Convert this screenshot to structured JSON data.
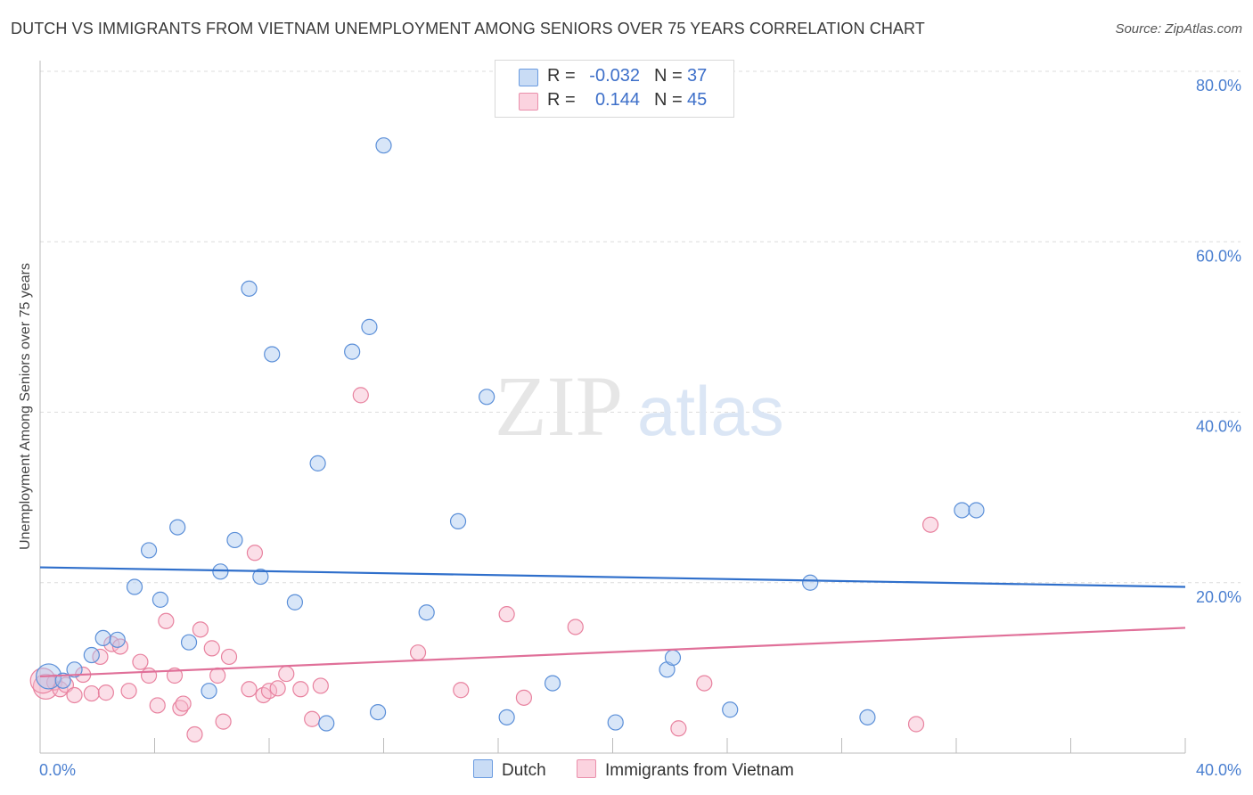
{
  "title": "DUTCH VS IMMIGRANTS FROM VIETNAM UNEMPLOYMENT AMONG SENIORS OVER 75 YEARS CORRELATION CHART",
  "source": "Source: ZipAtlas.com",
  "watermark": {
    "zip": "ZIP",
    "atlas": "atlas"
  },
  "legend": {
    "r_label": "R =",
    "n_label": "N =",
    "series": [
      {
        "name": "Dutch",
        "r": "-0.032",
        "n": "37"
      },
      {
        "name": "Immigrants from Vietnam",
        "r": "0.144",
        "n": "45"
      }
    ]
  },
  "colors": {
    "dutch_fill": "#a8c8f0",
    "dutch_stroke": "#5b8fd8",
    "dutch_line": "#2f6fcb",
    "viet_fill": "#f7b8cc",
    "viet_stroke": "#e8829f",
    "viet_line": "#e07099",
    "tick_text": "#4a7fd0",
    "grid": "#dcdcdc"
  },
  "chart_data": {
    "type": "scatter",
    "title": "DUTCH VS IMMIGRANTS FROM VIETNAM UNEMPLOYMENT AMONG SENIORS OVER 75 YEARS CORRELATION CHART",
    "xlabel": "",
    "ylabel": "Unemployment Among Seniors over 75 years",
    "xlim": [
      0,
      40
    ],
    "ylim": [
      0,
      80
    ],
    "x_ticks_labeled": [
      "0.0%",
      "40.0%"
    ],
    "y_ticks": [
      "20.0%",
      "40.0%",
      "60.0%",
      "80.0%"
    ],
    "series": [
      {
        "name": "Dutch",
        "trend": {
          "y_at_x0": 21.8,
          "y_at_x40": 19.5
        },
        "points": [
          [
            0.3,
            9.0
          ],
          [
            0.8,
            8.5
          ],
          [
            1.2,
            9.8
          ],
          [
            1.8,
            11.5
          ],
          [
            2.2,
            13.5
          ],
          [
            2.7,
            13.3
          ],
          [
            3.3,
            19.5
          ],
          [
            3.8,
            23.8
          ],
          [
            4.2,
            18.0
          ],
          [
            4.8,
            26.5
          ],
          [
            5.2,
            13.0
          ],
          [
            5.9,
            7.3
          ],
          [
            6.3,
            21.3
          ],
          [
            6.8,
            25.0
          ],
          [
            7.3,
            54.5
          ],
          [
            7.7,
            20.7
          ],
          [
            8.1,
            46.8
          ],
          [
            8.9,
            17.7
          ],
          [
            9.7,
            34.0
          ],
          [
            10.0,
            3.5
          ],
          [
            10.9,
            47.1
          ],
          [
            11.5,
            50.0
          ],
          [
            11.8,
            4.8
          ],
          [
            12.0,
            71.3
          ],
          [
            13.5,
            16.5
          ],
          [
            14.6,
            27.2
          ],
          [
            15.6,
            41.8
          ],
          [
            16.3,
            4.2
          ],
          [
            17.9,
            8.2
          ],
          [
            20.1,
            3.6
          ],
          [
            21.9,
            9.8
          ],
          [
            22.1,
            11.2
          ],
          [
            24.1,
            5.1
          ],
          [
            26.9,
            20.0
          ],
          [
            28.9,
            4.2
          ],
          [
            32.2,
            28.5
          ],
          [
            32.7,
            28.5
          ]
        ]
      },
      {
        "name": "Immigrants from Vietnam",
        "trend": {
          "y_at_x0": 9.0,
          "y_at_x40": 14.7
        },
        "points": [
          [
            0.2,
            7.8
          ],
          [
            0.5,
            8.3
          ],
          [
            0.7,
            7.5
          ],
          [
            0.9,
            8.0
          ],
          [
            1.2,
            6.8
          ],
          [
            1.5,
            9.2
          ],
          [
            1.8,
            7.0
          ],
          [
            2.1,
            11.3
          ],
          [
            2.3,
            7.1
          ],
          [
            2.5,
            12.8
          ],
          [
            2.8,
            12.5
          ],
          [
            3.1,
            7.3
          ],
          [
            3.5,
            10.7
          ],
          [
            3.8,
            9.1
          ],
          [
            4.1,
            5.6
          ],
          [
            4.4,
            15.5
          ],
          [
            4.7,
            9.1
          ],
          [
            4.9,
            5.3
          ],
          [
            5.0,
            5.8
          ],
          [
            5.4,
            2.2
          ],
          [
            5.6,
            14.5
          ],
          [
            6.0,
            12.3
          ],
          [
            6.2,
            9.1
          ],
          [
            6.4,
            3.7
          ],
          [
            6.6,
            11.3
          ],
          [
            7.3,
            7.5
          ],
          [
            7.5,
            23.5
          ],
          [
            7.8,
            6.8
          ],
          [
            8.0,
            7.3
          ],
          [
            8.3,
            7.6
          ],
          [
            8.6,
            9.3
          ],
          [
            9.1,
            7.5
          ],
          [
            9.5,
            4.0
          ],
          [
            9.8,
            7.9
          ],
          [
            11.2,
            42.0
          ],
          [
            13.2,
            11.8
          ],
          [
            14.7,
            7.4
          ],
          [
            16.3,
            16.3
          ],
          [
            16.9,
            6.5
          ],
          [
            18.7,
            14.8
          ],
          [
            22.3,
            2.9
          ],
          [
            23.2,
            8.2
          ],
          [
            31.1,
            26.8
          ],
          [
            30.6,
            3.4
          ],
          [
            0.1,
            8.5
          ]
        ]
      }
    ]
  }
}
